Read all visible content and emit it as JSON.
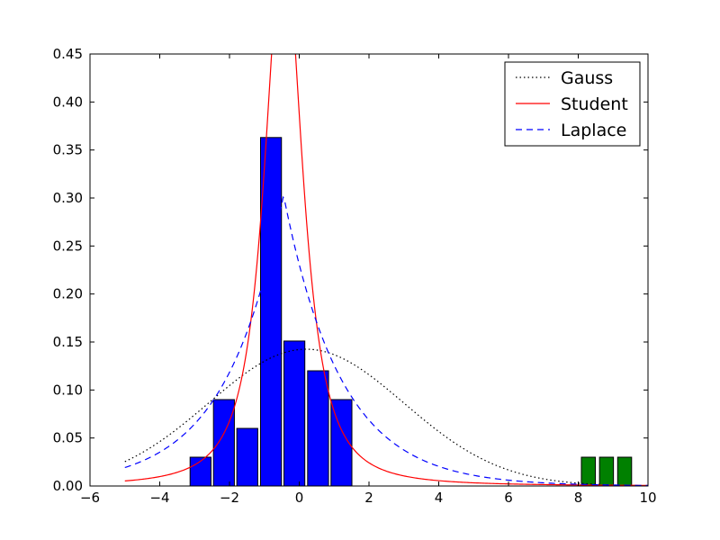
{
  "chart_data": {
    "type": "bar",
    "title": "",
    "xlabel": "",
    "ylabel": "",
    "xlim": [
      -6,
      10
    ],
    "ylim": [
      0,
      0.45
    ],
    "grid": false,
    "legend_placement": "top-right",
    "x_ticks": [
      "−6",
      "−4",
      "−2",
      "0",
      "2",
      "4",
      "6",
      "8",
      "10"
    ],
    "x_tick_values": [
      -6,
      -4,
      -2,
      0,
      2,
      4,
      6,
      8,
      10
    ],
    "y_ticks": [
      "0.00",
      "0.05",
      "0.10",
      "0.15",
      "0.20",
      "0.25",
      "0.30",
      "0.35",
      "0.40",
      "0.45"
    ],
    "y_tick_values": [
      0,
      0.05,
      0.1,
      0.15,
      0.2,
      0.25,
      0.3,
      0.35,
      0.4,
      0.45
    ],
    "histogram_bars": [
      {
        "x_left": -3.13,
        "x_right": -2.53,
        "value": 0.03,
        "color": "#0000ff"
      },
      {
        "x_left": -2.46,
        "x_right": -1.86,
        "value": 0.09,
        "color": "#0000ff"
      },
      {
        "x_left": -1.79,
        "x_right": -1.19,
        "value": 0.06,
        "color": "#0000ff"
      },
      {
        "x_left": -1.11,
        "x_right": -0.51,
        "value": 0.363,
        "color": "#0000ff"
      },
      {
        "x_left": -0.44,
        "x_right": 0.16,
        "value": 0.151,
        "color": "#0000ff"
      },
      {
        "x_left": 0.24,
        "x_right": 0.84,
        "value": 0.12,
        "color": "#0000ff"
      },
      {
        "x_left": 0.91,
        "x_right": 1.51,
        "value": 0.09,
        "color": "#0000ff"
      },
      {
        "x_left": 8.09,
        "x_right": 8.49,
        "value": 0.03,
        "color": "#008000"
      },
      {
        "x_left": 8.61,
        "x_right": 9.01,
        "value": 0.03,
        "color": "#008000"
      },
      {
        "x_left": 9.13,
        "x_right": 9.53,
        "value": 0.03,
        "color": "#008000"
      }
    ],
    "series": [
      {
        "name": "Gauss",
        "style": "dotted",
        "color": "#000000",
        "distribution": "normal",
        "loc": 0.2,
        "scale": 2.8,
        "x_range": [
          -5,
          10
        ]
      },
      {
        "name": "Student",
        "style": "solid",
        "color": "#ff0000",
        "distribution": "t",
        "df": 1.6,
        "loc": -0.45,
        "scale": 0.6,
        "x_range": [
          -5,
          10
        ]
      },
      {
        "name": "Laplace",
        "style": "dashed",
        "color": "#0000ff",
        "distribution": "laplace",
        "loc": -0.45,
        "scale": 1.65,
        "x_range": [
          -5,
          10
        ]
      }
    ]
  }
}
